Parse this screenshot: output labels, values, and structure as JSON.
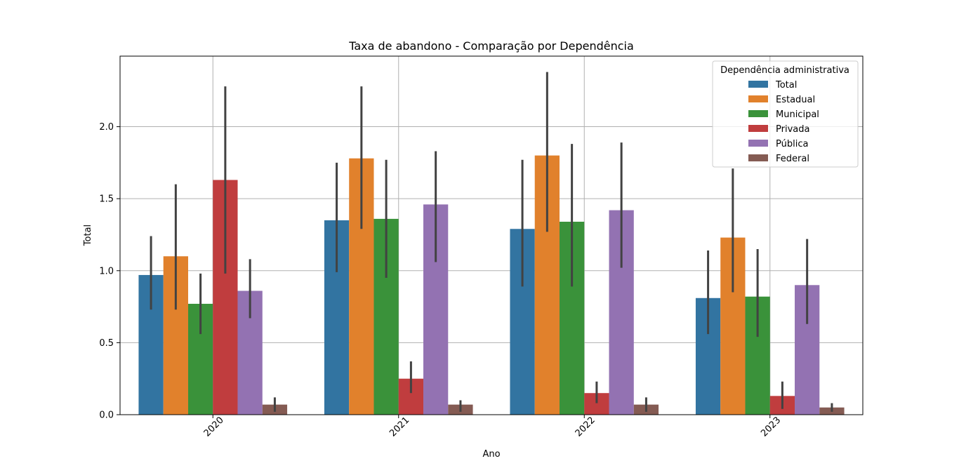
{
  "chart_data": {
    "type": "bar",
    "title": "Taxa de abandono - Comparação por Dependência",
    "xlabel": "Ano",
    "ylabel": "Total",
    "categories": [
      "2020",
      "2021",
      "2022",
      "2023"
    ],
    "ylim": [
      0,
      2.49
    ],
    "yticks": [
      "0.0",
      "0.5",
      "1.0",
      "1.5",
      "2.0"
    ],
    "grid": true,
    "legend": {
      "title": "Dependência administrativa",
      "placement": "top-right"
    },
    "series": [
      {
        "name": "Total",
        "color": "#3274a1",
        "values": [
          0.97,
          1.35,
          1.29,
          0.81
        ],
        "err_low": [
          0.73,
          0.99,
          0.89,
          0.56
        ],
        "err_high": [
          1.24,
          1.75,
          1.77,
          1.14
        ]
      },
      {
        "name": "Estadual",
        "color": "#e1812c",
        "values": [
          1.1,
          1.78,
          1.8,
          1.23
        ],
        "err_low": [
          0.73,
          1.29,
          1.27,
          0.85
        ],
        "err_high": [
          1.6,
          2.28,
          2.38,
          1.71
        ]
      },
      {
        "name": "Municipal",
        "color": "#3a923a",
        "values": [
          0.77,
          1.36,
          1.34,
          0.82
        ],
        "err_low": [
          0.56,
          0.95,
          0.89,
          0.54
        ],
        "err_high": [
          0.98,
          1.77,
          1.88,
          1.15
        ]
      },
      {
        "name": "Privada",
        "color": "#c03d3e",
        "values": [
          1.63,
          0.25,
          0.15,
          0.13
        ],
        "err_low": [
          0.98,
          0.15,
          0.08,
          0.04
        ],
        "err_high": [
          2.28,
          0.37,
          0.23,
          0.23
        ]
      },
      {
        "name": "Pública",
        "color": "#9372b2",
        "values": [
          0.86,
          1.46,
          1.42,
          0.9
        ],
        "err_low": [
          0.67,
          1.06,
          1.02,
          0.63
        ],
        "err_high": [
          1.08,
          1.83,
          1.89,
          1.22
        ]
      },
      {
        "name": "Federal",
        "color": "#845b53",
        "values": [
          0.07,
          0.07,
          0.07,
          0.05
        ],
        "err_low": [
          0.02,
          0.02,
          0.02,
          0.02
        ],
        "err_high": [
          0.12,
          0.1,
          0.12,
          0.08
        ]
      }
    ]
  }
}
